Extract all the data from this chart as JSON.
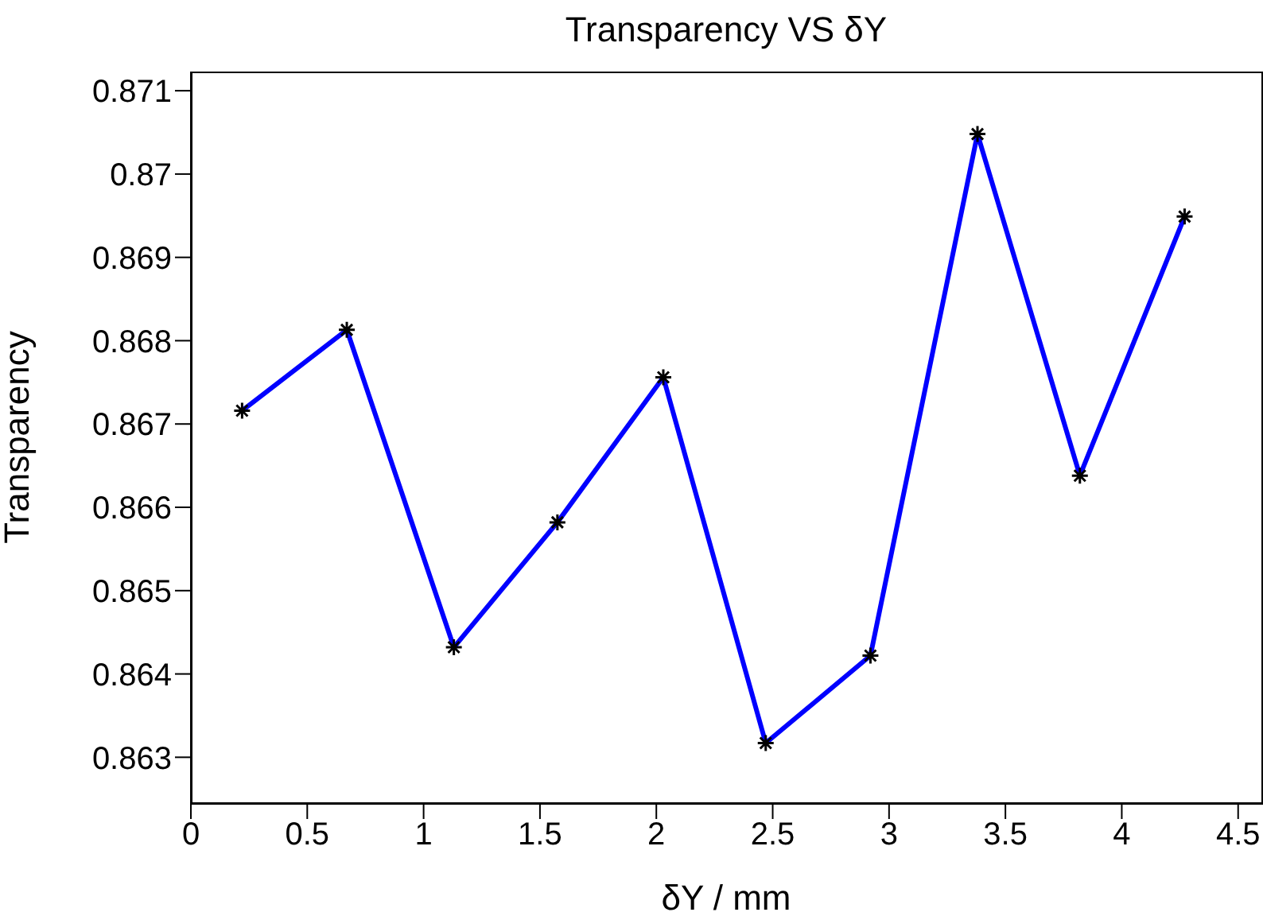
{
  "chart_data": {
    "type": "line",
    "title": "Transparency VS δY",
    "xlabel": "δY / mm",
    "ylabel": "Transparency",
    "x": [
      0.22,
      0.67,
      1.13,
      1.575,
      2.03,
      2.47,
      2.92,
      3.38,
      3.82,
      4.27
    ],
    "series": [
      {
        "color": "#0000ff",
        "values": [
          0.86716,
          0.86813,
          0.86432,
          0.86582,
          0.86756,
          0.86317,
          0.86422,
          0.87048,
          0.86638,
          0.86949
        ]
      }
    ],
    "xlim": [
      0,
      4.6
    ],
    "xticks": [
      0,
      0.5,
      1,
      1.5,
      2,
      2.5,
      3,
      3.5,
      4,
      4.5
    ],
    "ylim": [
      0.86245,
      0.87123
    ],
    "yticks": [
      0.863,
      0.864,
      0.865,
      0.866,
      0.867,
      0.868,
      0.869,
      0.87,
      0.871
    ],
    "grid": false,
    "legend": false,
    "marker": "cross",
    "line_style": "solid"
  }
}
